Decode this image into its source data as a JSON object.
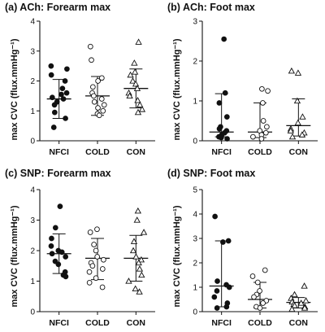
{
  "chart_data": [
    {
      "type": "scatter",
      "title": "(a) ACh: Forearm max",
      "ylabel": "max CVC (flux.mmHg⁻¹)",
      "ylim": [
        0,
        4
      ],
      "yticks": [
        "0",
        "1",
        "2",
        "3",
        "4"
      ],
      "categories": [
        "NFCI",
        "COLD",
        "CON"
      ],
      "series": [
        {
          "name": "NFCI",
          "marker": "filled-circle",
          "values": [
            2.5,
            2.4,
            2.2,
            2.0,
            1.75,
            1.6,
            1.55,
            1.45,
            1.4,
            1.3,
            1.2,
            0.95,
            0.75,
            0.45
          ],
          "summary_center": 1.4,
          "summary_low": 0.75,
          "summary_high": 2.05
        },
        {
          "name": "COLD",
          "marker": "open-circle",
          "values": [
            3.15,
            2.7,
            2.1,
            2.0,
            1.8,
            1.6,
            1.5,
            1.4,
            1.3,
            1.2,
            1.1,
            1.0,
            0.9,
            0.85
          ],
          "summary_center": 1.5,
          "summary_low": 0.85,
          "summary_high": 2.15
        },
        {
          "name": "CON",
          "marker": "open-triangle",
          "values": [
            3.3,
            2.6,
            2.3,
            2.2,
            2.0,
            1.9,
            1.75,
            1.6,
            1.5,
            1.35,
            1.2,
            1.05,
            0.95
          ],
          "summary_center": 1.75,
          "summary_low": 1.1,
          "summary_high": 2.4
        }
      ]
    },
    {
      "type": "scatter",
      "title": "(b) ACh: Foot max",
      "ylabel": "max CVC (flux.mmHg⁻¹)",
      "ylim": [
        0,
        3
      ],
      "yticks": [
        "0",
        "1",
        "2",
        "3"
      ],
      "categories": [
        "NFCI",
        "COLD",
        "CON"
      ],
      "series": [
        {
          "name": "NFCI",
          "marker": "filled-circle",
          "values": [
            2.55,
            1.2,
            0.95,
            0.6,
            0.35,
            0.3,
            0.25,
            0.2,
            0.15,
            0.1,
            0.08,
            0.05
          ],
          "summary_center": 0.22,
          "summary_low": 0.1,
          "summary_high": 1.18
        },
        {
          "name": "COLD",
          "marker": "open-circle",
          "values": [
            1.3,
            1.25,
            0.95,
            0.5,
            0.35,
            0.25,
            0.2,
            0.15,
            0.1,
            0.05
          ],
          "summary_center": 0.22,
          "summary_low": 0.08,
          "summary_high": 0.95
        },
        {
          "name": "CON",
          "marker": "open-triangle",
          "values": [
            1.75,
            1.7,
            1.0,
            0.6,
            0.45,
            0.3,
            0.25,
            0.2,
            0.15,
            0.1
          ],
          "summary_center": 0.38,
          "summary_low": 0.12,
          "summary_high": 1.05
        }
      ]
    },
    {
      "type": "scatter",
      "title": "(c) SNP: Forearm max",
      "ylabel": "max CVC (flux.mmHg⁻¹)",
      "ylim": [
        0,
        4
      ],
      "yticks": [
        "0",
        "1",
        "2",
        "3",
        "4"
      ],
      "categories": [
        "NFCI",
        "COLD",
        "CON"
      ],
      "series": [
        {
          "name": "NFCI",
          "marker": "filled-circle",
          "values": [
            3.45,
            2.75,
            2.4,
            2.15,
            2.0,
            1.95,
            1.9,
            1.8,
            1.65,
            1.55,
            1.3,
            1.2,
            1.15
          ],
          "summary_center": 1.9,
          "summary_low": 1.25,
          "summary_high": 2.55
        },
        {
          "name": "COLD",
          "marker": "open-circle",
          "values": [
            2.7,
            2.6,
            2.2,
            2.0,
            1.8,
            1.7,
            1.6,
            1.5,
            1.4,
            1.3,
            1.1,
            0.95,
            0.8
          ],
          "summary_center": 1.75,
          "summary_low": 1.05,
          "summary_high": 2.4
        },
        {
          "name": "CON",
          "marker": "open-triangle",
          "values": [
            3.3,
            3.0,
            2.6,
            2.3,
            2.0,
            1.8,
            1.7,
            1.6,
            1.4,
            1.2,
            1.0,
            0.75,
            0.65
          ],
          "summary_center": 1.75,
          "summary_low": 1.0,
          "summary_high": 2.5
        }
      ]
    },
    {
      "type": "scatter",
      "title": "(d) SNP: Foot max",
      "ylabel": "max CVC (flux.mmHg⁻¹)",
      "ylim": [
        0,
        5
      ],
      "yticks": [
        "0",
        "1",
        "2",
        "3",
        "4",
        "5"
      ],
      "categories": [
        "NFCI",
        "COLD",
        "CON"
      ],
      "series": [
        {
          "name": "NFCI",
          "marker": "filled-circle",
          "values": [
            3.9,
            2.9,
            2.85,
            1.25,
            1.1,
            1.0,
            0.85,
            0.6,
            0.35,
            0.2,
            0.15
          ],
          "summary_center": 1.05,
          "summary_low": 0.2,
          "summary_high": 2.9
        },
        {
          "name": "COLD",
          "marker": "open-circle",
          "values": [
            1.7,
            1.45,
            1.2,
            0.85,
            0.7,
            0.6,
            0.45,
            0.35,
            0.2,
            0.15
          ],
          "summary_center": 0.5,
          "summary_low": 0.15,
          "summary_high": 1.2
        },
        {
          "name": "CON",
          "marker": "open-triangle",
          "values": [
            1.05,
            0.7,
            0.55,
            0.45,
            0.4,
            0.35,
            0.3,
            0.25,
            0.2,
            0.15,
            0.1
          ],
          "summary_center": 0.38,
          "summary_low": 0.15,
          "summary_high": 0.58
        }
      ]
    }
  ]
}
